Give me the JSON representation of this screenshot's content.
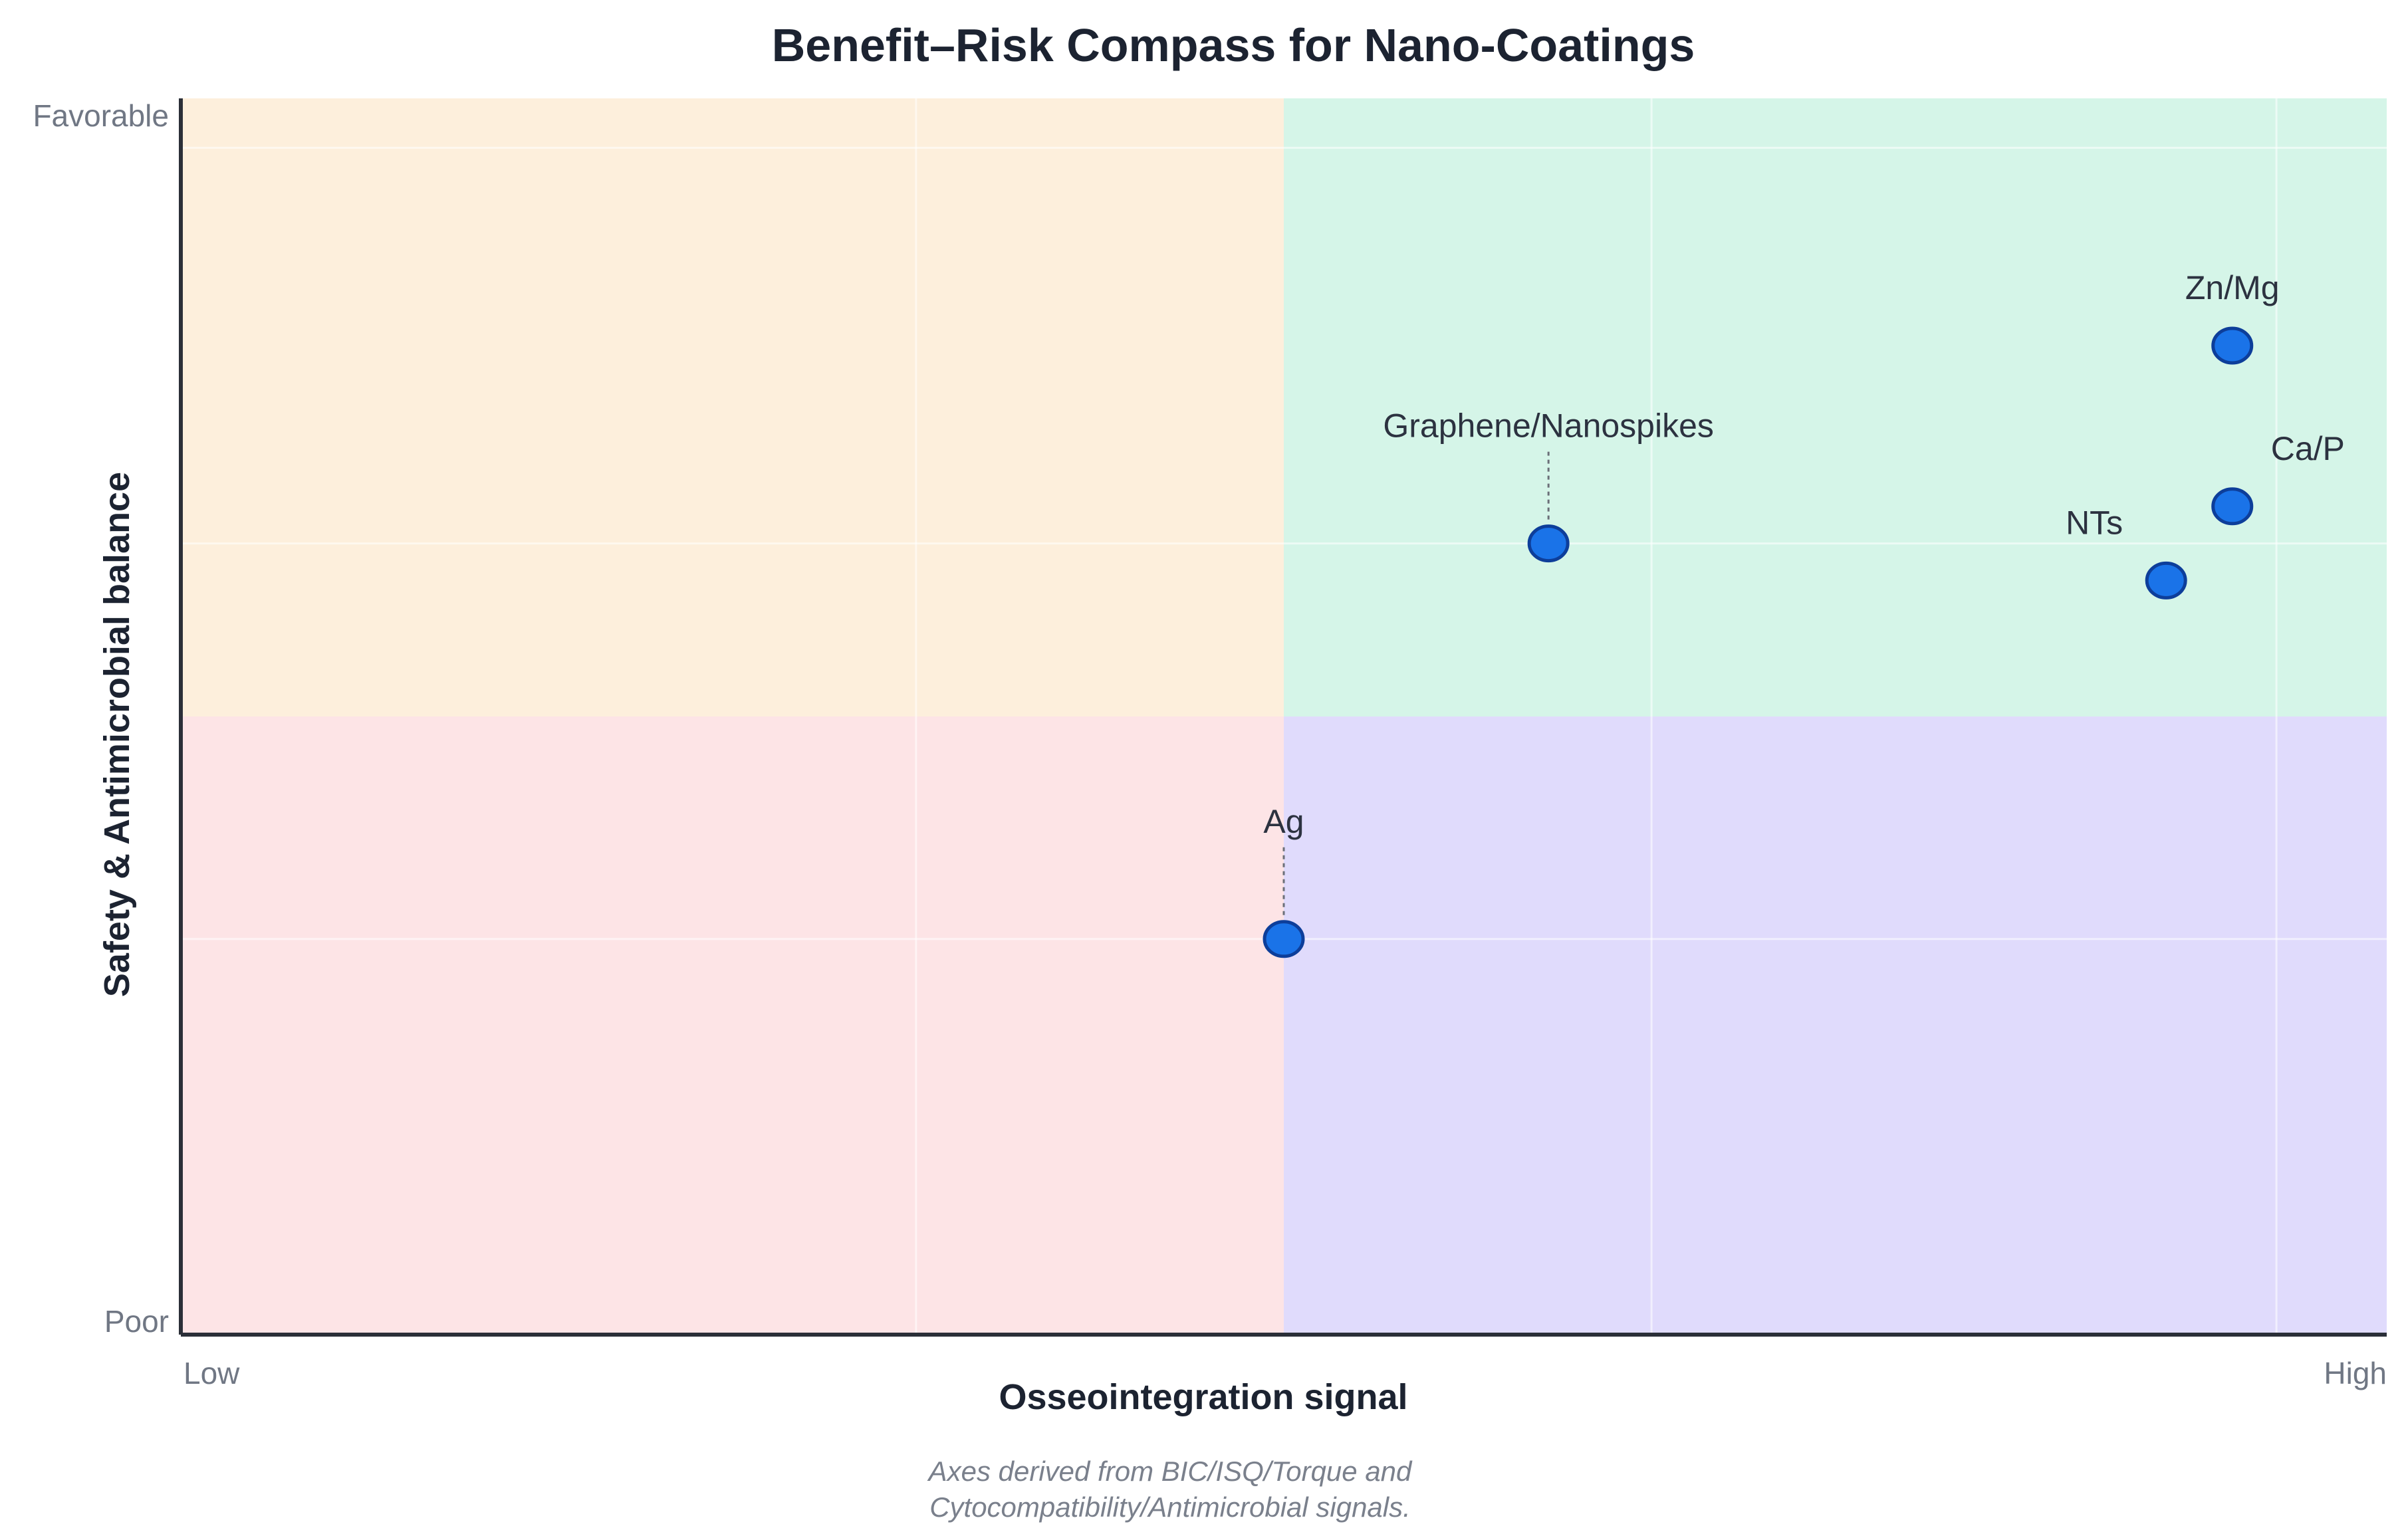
{
  "chart_data": {
    "type": "scatter",
    "title": "Benefit–Risk Compass for Nano-Coatings",
    "xlabel": "Osseointegration signal",
    "ylabel": "Safety & Antimicrobial balance",
    "xlim": [
      0,
      1
    ],
    "ylim": [
      0,
      1
    ],
    "x_tick_labels": [
      "Low",
      "High"
    ],
    "y_tick_labels": [
      "Poor",
      "Favorable"
    ],
    "quadrants": [
      {
        "id": "top-left",
        "color": "#fdefdc"
      },
      {
        "id": "top-right",
        "color": "#d5f5e8"
      },
      {
        "id": "bottom-left",
        "color": "#fde4e6"
      },
      {
        "id": "bottom-right",
        "color": "#e0dbfc"
      }
    ],
    "grid": true,
    "marker_color": "#1a73e8",
    "marker_edge_color": "#0d3e9a",
    "points": [
      {
        "label": "Zn/Mg",
        "x": 0.93,
        "y": 0.8
      },
      {
        "label": "Ca/P",
        "x": 0.93,
        "y": 0.67
      },
      {
        "label": "NTs",
        "x": 0.9,
        "y": 0.61
      },
      {
        "label": "Graphene/Nanospikes",
        "x": 0.62,
        "y": 0.64
      },
      {
        "label": "Ag",
        "x": 0.5,
        "y": 0.32
      }
    ],
    "caption_lines": [
      "Axes derived from BIC/ISQ/Torque and",
      "Cytocompatibility/Antimicrobial signals."
    ]
  }
}
